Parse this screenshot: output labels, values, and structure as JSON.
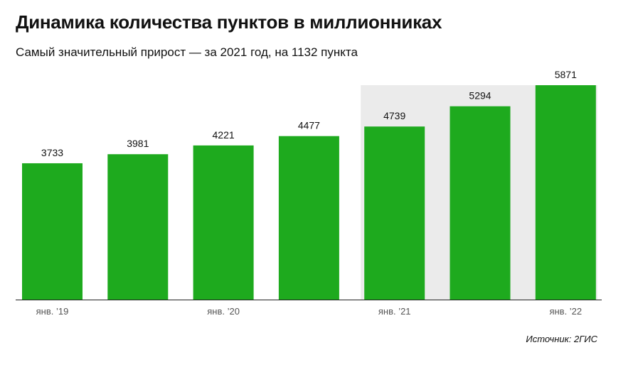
{
  "chart_data": {
    "type": "bar",
    "title": "Динамика количества пунктов в миллионниках",
    "subtitle": "Самый значительный прирост — за 2021 год, на 1132 пункта",
    "categories": [
      "янв. ’19",
      "",
      "янв. ’20",
      "",
      "янв. ’21",
      "",
      "янв. ’22"
    ],
    "values": [
      3733,
      3981,
      4221,
      4477,
      4739,
      5294,
      5871
    ],
    "data_labels": [
      "3733",
      "3981",
      "4221",
      "4477",
      "4739",
      "5294",
      "5871"
    ],
    "ylim": [
      0,
      6000
    ],
    "grid": false,
    "highlight_range": [
      4,
      6
    ],
    "bar_color": "#1eaa1e",
    "highlight_color": "#ebebeb",
    "source": "Источник: 2ГИС"
  }
}
